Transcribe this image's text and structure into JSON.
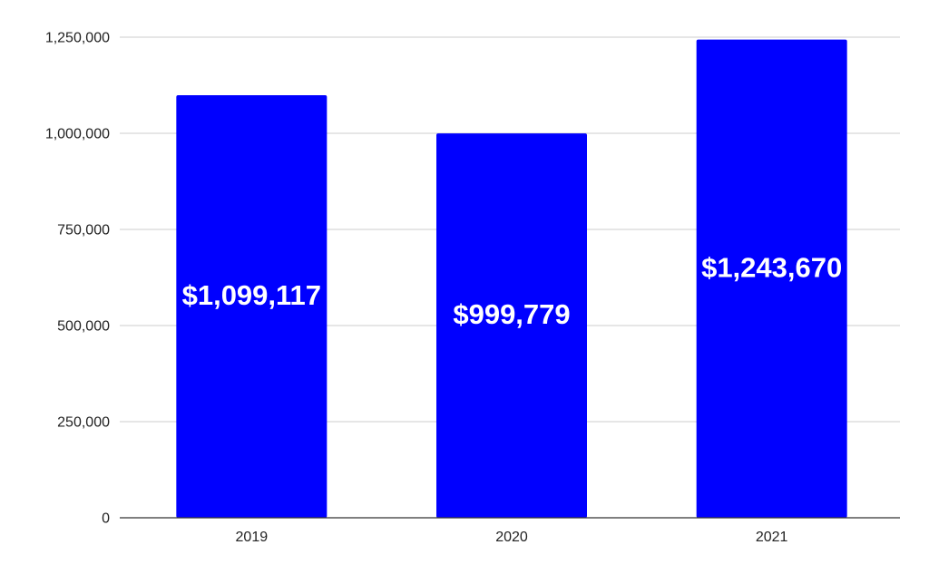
{
  "chart_data": {
    "type": "bar",
    "categories": [
      "2019",
      "2020",
      "2021"
    ],
    "values": [
      1099117,
      999779,
      1243670
    ],
    "data_labels": [
      "$1,099,117",
      "$999,779",
      "$1,243,670"
    ],
    "yticks": [
      0,
      250000,
      500000,
      750000,
      1000000,
      1250000
    ],
    "ytick_labels": [
      "0",
      "250,000",
      "500,000",
      "750,000",
      "1,000,000",
      "1,250,000"
    ],
    "ylim": [
      0,
      1250000
    ],
    "grid": true,
    "bar_color": "#0000ff",
    "title": "",
    "xlabel": "",
    "ylabel": ""
  }
}
